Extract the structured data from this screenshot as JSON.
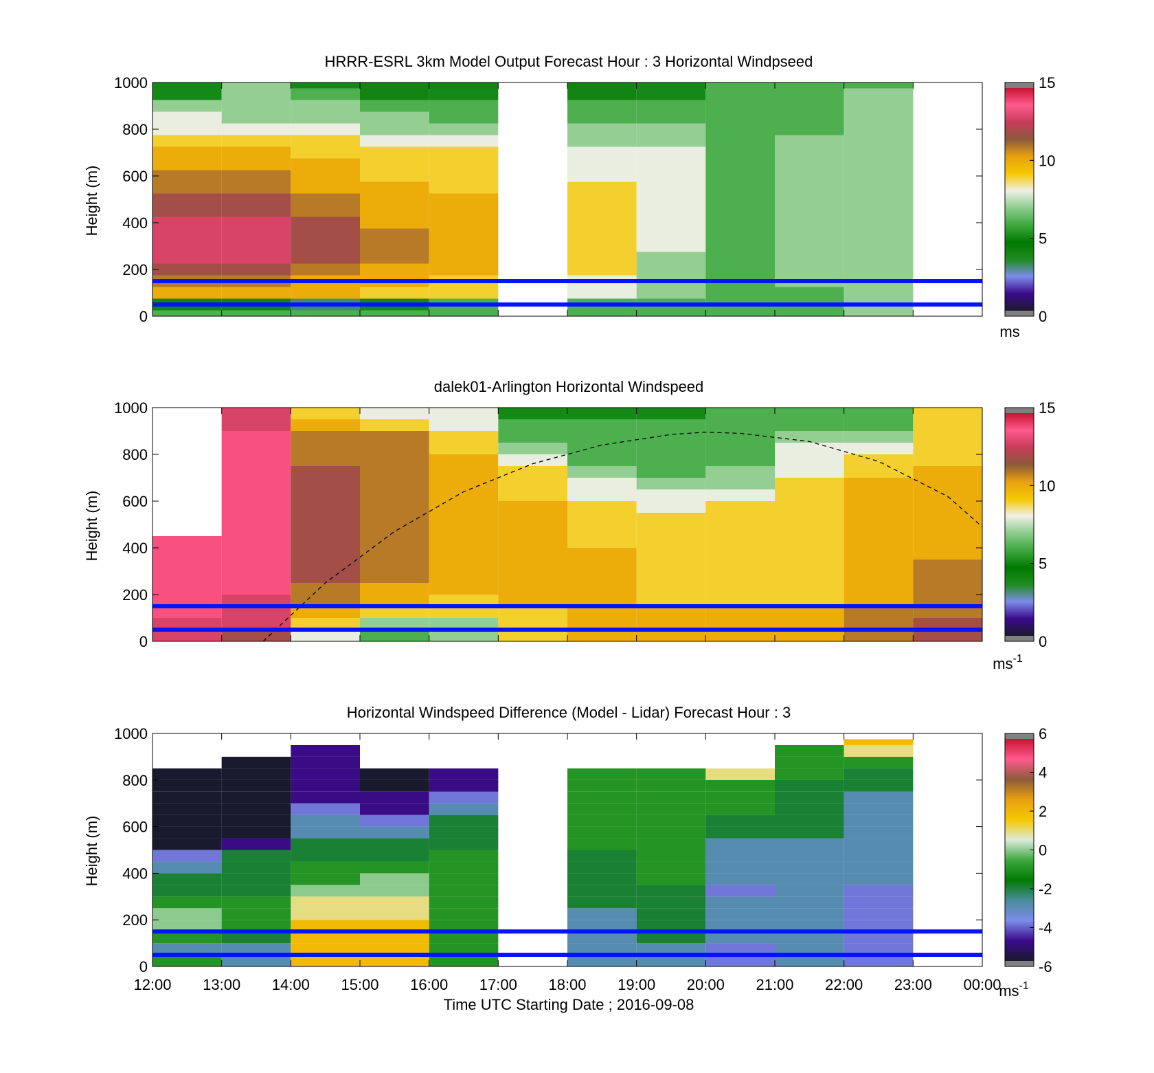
{
  "colors": {
    "speed_scale": [
      "#1a1a2e",
      "#3c0a8c",
      "#7b8de8",
      "#1f8c1f",
      "#007a00",
      "#3ea83e",
      "#8dcc8d",
      "#f0f0e6",
      "#f5c800",
      "#e8a010",
      "#8c5a3c",
      "#c83c5a",
      "#ff5a8c",
      "#c81432"
    ],
    "diff_scale": [
      "#1a1a2e",
      "#3c0a8c",
      "#7b8de8",
      "#4a8c9c",
      "#007a00",
      "#3ea83e",
      "#dcebdc",
      "#f5c800",
      "#e8a010",
      "#8c5a3c",
      "#ff5a8c",
      "#c81432"
    ],
    "ref_line": "#0014ff"
  },
  "chart_data": [
    {
      "type": "heatmap",
      "title": "HRRR-ESRL 3km Model Output   Forecast Hour : 3 Horizontal Windpseed",
      "ylabel": "Height (m)",
      "ylim": [
        0,
        1000
      ],
      "yticks": [
        "0",
        "200",
        "400",
        "600",
        "800",
        "1000"
      ],
      "xlim": [
        12,
        24
      ],
      "colorbar": {
        "ticks": [
          "0",
          "5",
          "10",
          "15"
        ],
        "range": [
          0,
          15
        ],
        "unit": "ms"
      },
      "time_columns": [
        12,
        13,
        14,
        15,
        16,
        18,
        19,
        20,
        21,
        22
      ],
      "heights": [
        0,
        25,
        75,
        125,
        175,
        225,
        275,
        325,
        375,
        425,
        475,
        525,
        575,
        625,
        675,
        725,
        775,
        825,
        875,
        925,
        975
      ],
      "values": [
        [
          6,
          4,
          10,
          11,
          12,
          13,
          13,
          13,
          13,
          12,
          12,
          11,
          11,
          10,
          10,
          9,
          8,
          8,
          7,
          5,
          5
        ],
        [
          6,
          4,
          10,
          11,
          12,
          13,
          13,
          13,
          13,
          12,
          12,
          11,
          11,
          10,
          10,
          9,
          8,
          7,
          7,
          7,
          7
        ],
        [
          6,
          3,
          10,
          10,
          11,
          12,
          12,
          12,
          12,
          11,
          11,
          10,
          10,
          10,
          9,
          9,
          8,
          7,
          7,
          6,
          5
        ],
        [
          6,
          5,
          9,
          10,
          10,
          11,
          11,
          11,
          10,
          10,
          10,
          10,
          9,
          9,
          9,
          8,
          7,
          7,
          6,
          4,
          4
        ],
        [
          6,
          6,
          9,
          9,
          10,
          10,
          10,
          10,
          10,
          10,
          10,
          9,
          9,
          9,
          9,
          8,
          7,
          6,
          6,
          5,
          4
        ],
        [
          6,
          6,
          8,
          8,
          9,
          9,
          9,
          9,
          9,
          9,
          9,
          9,
          8,
          8,
          8,
          7,
          7,
          6,
          6,
          4,
          4
        ],
        [
          6,
          6,
          7,
          7,
          7,
          7,
          8,
          8,
          8,
          8,
          8,
          8,
          8,
          8,
          8,
          7,
          7,
          6,
          6,
          5,
          5
        ],
        [
          6,
          6,
          6,
          6,
          6,
          6,
          6,
          6,
          6,
          6,
          6,
          6,
          6,
          6,
          6,
          6,
          6,
          6,
          6,
          6,
          6
        ],
        [
          6,
          6,
          6,
          7,
          7,
          7,
          7,
          7,
          7,
          7,
          7,
          7,
          7,
          7,
          7,
          7,
          6,
          6,
          6,
          6,
          6
        ],
        [
          7,
          7,
          7,
          7,
          7,
          7,
          7,
          7,
          7,
          7,
          7,
          7,
          7,
          7,
          7,
          7,
          7,
          7,
          7,
          7,
          6
        ]
      ],
      "reference_lines_m": [
        50,
        150
      ]
    },
    {
      "type": "heatmap",
      "title": "dalek01-Arlington  Horizontal Windspeed",
      "ylabel": "Height (m)",
      "ylim": [
        0,
        1000
      ],
      "yticks": [
        "0",
        "200",
        "400",
        "600",
        "800",
        "1000"
      ],
      "xlim": [
        12,
        24
      ],
      "colorbar": {
        "ticks": [
          "0",
          "5",
          "10",
          "15"
        ],
        "range": [
          0,
          15
        ],
        "unit": "ms",
        "unit_exp": "-1"
      },
      "time_columns": [
        12,
        13,
        14,
        15,
        16,
        17,
        18,
        19,
        20,
        21,
        22,
        23
      ],
      "heights": [
        0,
        50,
        100,
        150,
        200,
        250,
        300,
        350,
        400,
        450,
        500,
        550,
        600,
        650,
        700,
        750,
        800,
        850,
        900,
        950
      ],
      "values": [
        [
          13,
          13,
          14,
          14,
          14,
          14,
          14,
          14,
          14,
          null,
          null,
          null,
          null,
          null,
          null,
          null,
          null,
          null,
          null,
          null
        ],
        [
          12,
          13,
          13,
          13,
          14,
          14,
          14,
          14,
          14,
          14,
          14,
          14,
          14,
          14,
          14,
          14,
          14,
          14,
          13,
          13
        ],
        [
          8,
          9,
          10,
          11,
          11,
          12,
          12,
          12,
          12,
          12,
          12,
          12,
          12,
          12,
          12,
          11,
          11,
          11,
          10,
          9
        ],
        [
          6,
          7,
          9,
          10,
          10,
          11,
          11,
          11,
          11,
          11,
          11,
          11,
          11,
          11,
          11,
          11,
          11,
          11,
          9,
          8
        ],
        [
          7,
          7,
          9,
          9,
          10,
          10,
          10,
          10,
          10,
          10,
          10,
          10,
          10,
          10,
          10,
          10,
          9,
          9,
          8,
          8
        ],
        [
          9,
          9,
          9,
          10,
          10,
          10,
          10,
          10,
          10,
          10,
          10,
          10,
          9,
          9,
          9,
          8,
          7,
          6,
          6,
          5
        ],
        [
          10,
          10,
          10,
          10,
          10,
          10,
          10,
          10,
          9,
          9,
          9,
          9,
          8,
          8,
          7,
          6,
          6,
          6,
          6,
          5
        ],
        [
          10,
          10,
          10,
          9,
          9,
          9,
          9,
          9,
          9,
          9,
          9,
          8,
          8,
          7,
          6,
          6,
          6,
          6,
          6,
          5
        ],
        [
          10,
          10,
          10,
          9,
          9,
          9,
          9,
          9,
          9,
          9,
          9,
          9,
          8,
          7,
          7,
          6,
          6,
          6,
          6,
          6
        ],
        [
          10,
          10,
          10,
          9,
          9,
          9,
          9,
          9,
          9,
          9,
          9,
          9,
          9,
          9,
          8,
          8,
          8,
          7,
          6,
          6
        ],
        [
          11,
          11,
          11,
          10,
          10,
          10,
          10,
          10,
          10,
          10,
          10,
          10,
          10,
          10,
          9,
          9,
          8,
          7,
          6,
          6
        ],
        [
          12,
          12,
          11,
          11,
          11,
          11,
          11,
          10,
          10,
          10,
          10,
          10,
          10,
          10,
          10,
          9,
          9,
          9,
          9,
          9
        ]
      ],
      "boundary_layer_curve": {
        "x": [
          13.6,
          14.5,
          15.5,
          16.5,
          17.5,
          18.5,
          19.5,
          20.0,
          20.5,
          21.5,
          22.5,
          23.5,
          24.0
        ],
        "y": [
          0,
          250,
          470,
          640,
          760,
          840,
          885,
          895,
          890,
          855,
          770,
          620,
          490
        ]
      },
      "reference_lines_m": [
        50,
        150
      ]
    },
    {
      "type": "heatmap",
      "title": "Horizontal Windspeed Difference (Model - Lidar) Forecast Hour : 3",
      "xlabel": "Time UTC  Starting Date ; 2016-09-08",
      "ylabel": "Height (m)",
      "ylim": [
        0,
        1000
      ],
      "yticks": [
        "0",
        "200",
        "400",
        "600",
        "800",
        "1000"
      ],
      "xlim": [
        12,
        24
      ],
      "xticks": [
        "12:00",
        "13:00",
        "14:00",
        "15:00",
        "16:00",
        "17:00",
        "18:00",
        "19:00",
        "20:00",
        "21:00",
        "22:00",
        "23:00",
        "00:00"
      ],
      "colorbar": {
        "ticks": [
          "-6",
          "-4",
          "-2",
          "0",
          "2",
          "4",
          "6"
        ],
        "range": [
          -6,
          6
        ],
        "unit": "ms",
        "unit_exp": "-1"
      },
      "time_columns": [
        12,
        13,
        14,
        15,
        16,
        18,
        19,
        20,
        21,
        22
      ],
      "top_of_data_m": [
        805,
        895,
        925,
        805,
        835,
        835,
        835,
        805,
        945,
        975
      ],
      "heights": [
        0,
        50,
        100,
        150,
        200,
        250,
        300,
        350,
        400,
        450,
        500,
        550,
        600,
        650,
        700,
        750,
        800,
        850,
        900,
        950
      ],
      "values": [
        [
          -1,
          -3,
          -1,
          0,
          0,
          -1,
          -2,
          -2,
          -3,
          -4,
          -6,
          -6,
          -6,
          -6,
          -6,
          -6,
          -6,
          null,
          null,
          null
        ],
        [
          -3,
          -3,
          -2,
          -1,
          -1,
          -1,
          -2,
          -2,
          -2,
          -2,
          -5,
          -6,
          -6,
          -6,
          -6,
          -6,
          -6,
          -6,
          null,
          null
        ],
        [
          2,
          2,
          2,
          2,
          1,
          1,
          0,
          -1,
          -1,
          -2,
          -2,
          -3,
          -3,
          -4,
          -5,
          -5,
          -5,
          -5,
          -5,
          null
        ],
        [
          2,
          2,
          2,
          2,
          1,
          1,
          0,
          0,
          -1,
          -2,
          -2,
          -3,
          -4,
          -5,
          -5,
          -6,
          -6,
          null,
          null,
          null
        ],
        [
          -1,
          -1,
          -1,
          -1,
          -1,
          -1,
          -1,
          -1,
          -1,
          -1,
          -2,
          -2,
          -2,
          -3,
          -4,
          -5,
          -5,
          null,
          null,
          null
        ],
        [
          -3,
          -3,
          -3,
          -3,
          -3,
          -2,
          -2,
          -2,
          -2,
          -2,
          -1,
          -1,
          -1,
          -1,
          -1,
          -1,
          -1,
          null,
          null,
          null
        ],
        [
          -3,
          -3,
          -2,
          -2,
          -2,
          -2,
          -2,
          -1,
          -1,
          -1,
          -1,
          -1,
          -1,
          -1,
          -1,
          -1,
          -1,
          null,
          null,
          null
        ],
        [
          -4,
          -4,
          -3,
          -3,
          -3,
          -3,
          -4,
          -3,
          -3,
          -3,
          -3,
          -2,
          -2,
          -1,
          -1,
          -1,
          1,
          null,
          null,
          null
        ],
        [
          -3,
          -3,
          -3,
          -3,
          -3,
          -3,
          -3,
          -3,
          -3,
          -3,
          -3,
          -2,
          -2,
          -2,
          -2,
          -2,
          -1,
          -1,
          -1,
          null
        ],
        [
          -4,
          -4,
          -4,
          -4,
          -4,
          -4,
          -4,
          -3,
          -3,
          -3,
          -3,
          -3,
          -3,
          -3,
          -3,
          -2,
          -2,
          -1,
          1,
          2
        ]
      ],
      "reference_lines_m": [
        50,
        150
      ]
    }
  ]
}
